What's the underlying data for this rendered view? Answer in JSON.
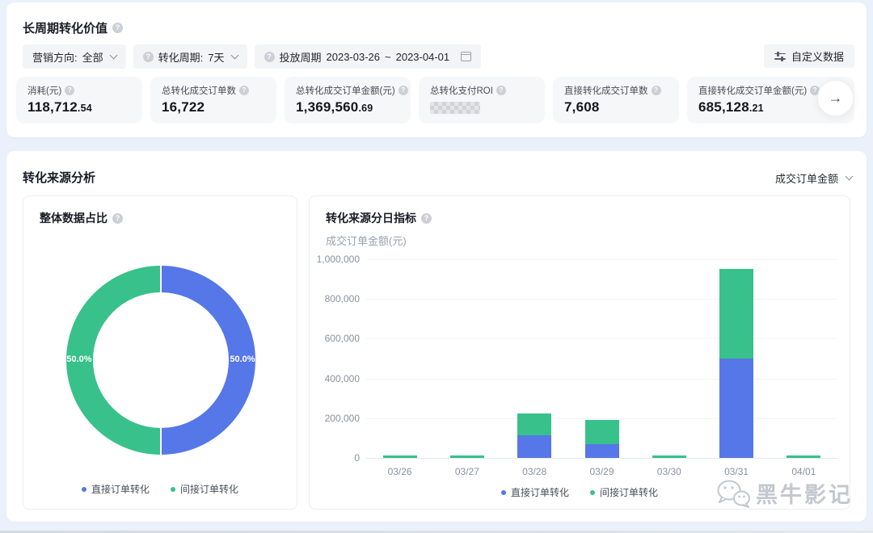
{
  "colors": {
    "direct": "#5577e8",
    "indirect": "#38c18a",
    "page_bg": "#ebf1fb",
    "chip_bg": "#f3f4f6",
    "card_bg": "#f6f7f9"
  },
  "icons": {
    "help": "?",
    "arrow_right": "→"
  },
  "header": {
    "title": "长周期转化价值",
    "filters": {
      "marketing_direction_label": "营销方向:",
      "marketing_direction_value": "全部",
      "conversion_cycle_label": "转化周期:",
      "conversion_cycle_value": "7天",
      "delivery_period_label": "投放周期",
      "date_start": "2023-03-26",
      "date_separator": "~",
      "date_end": "2023-04-01"
    },
    "custom_data_button": "自定义数据",
    "stats": [
      {
        "label": "消耗(元)",
        "value_int": "118,712",
        "value_dec": ".54"
      },
      {
        "label": "总转化成交订单数",
        "value_int": "16,722",
        "value_dec": ""
      },
      {
        "label": "总转化成交订单金额(元)",
        "value_int": "1,369,560",
        "value_dec": ".69"
      },
      {
        "label": "总转化支付ROI",
        "value_int": "",
        "value_dec": "",
        "masked": true
      },
      {
        "label": "直接转化成交订单数",
        "value_int": "7,608",
        "value_dec": ""
      },
      {
        "label": "直接转化成交订单金额(元)",
        "value_int": "685,128",
        "value_dec": ".21"
      }
    ]
  },
  "analysis": {
    "section_title": "转化来源分析",
    "metric_dropdown": "成交订单金额",
    "donut_title": "整体数据占比",
    "bar_title": "转化来源分日指标",
    "bar_subtitle": "成交订单金额(元)"
  },
  "chart_data": [
    {
      "type": "pie",
      "variant": "donut",
      "title": "整体数据占比",
      "slices": [
        {
          "label": "直接订单转化",
          "value": 50.0,
          "pct_label": "50.0%",
          "color": "#5577e8"
        },
        {
          "label": "间接订单转化",
          "value": 50.0,
          "pct_label": "50.0%",
          "color": "#38c18a"
        }
      ],
      "legend_position": "bottom"
    },
    {
      "type": "bar",
      "stacked": true,
      "title": "转化来源分日指标",
      "ylabel": "成交订单金额(元)",
      "categories": [
        "03/26",
        "03/27",
        "03/28",
        "03/29",
        "03/30",
        "03/31",
        "04/01"
      ],
      "series": [
        {
          "name": "直接订单转化",
          "color": "#5577e8",
          "values": [
            0,
            0,
            112000,
            70000,
            0,
            500000,
            0
          ]
        },
        {
          "name": "间接订单转化",
          "color": "#38c18a",
          "values": [
            8000,
            8000,
            110000,
            120000,
            8000,
            450000,
            8000
          ]
        }
      ],
      "ylim": [
        0,
        1000000
      ],
      "yticks": [
        "1,000,000",
        "800,000",
        "600,000",
        "400,000",
        "200,000",
        "0"
      ],
      "grid": true,
      "legend_position": "bottom"
    }
  ],
  "watermark": {
    "text": "黑牛影记"
  }
}
